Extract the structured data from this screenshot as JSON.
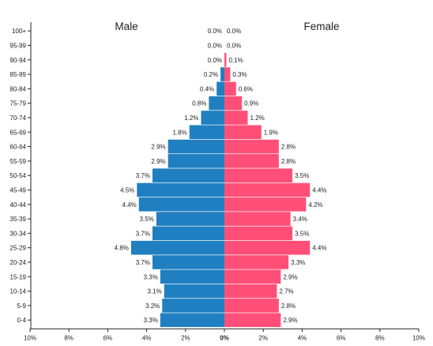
{
  "chart_data": {
    "type": "bar",
    "orientation": "horizontal",
    "layout": "population-pyramid",
    "categories": [
      "100+",
      "95-99",
      "90-94",
      "85-89",
      "80-84",
      "75-79",
      "70-74",
      "65-69",
      "60-64",
      "55-59",
      "50-54",
      "45-49",
      "40-44",
      "35-39",
      "30-34",
      "25-29",
      "20-24",
      "15-19",
      "10-14",
      "5-9",
      "0-4"
    ],
    "series": [
      {
        "name": "Male",
        "side": "left",
        "color": "#1f7fc0",
        "values": [
          0.0,
          0.0,
          0.0,
          0.2,
          0.4,
          0.8,
          1.2,
          1.8,
          2.9,
          2.9,
          3.7,
          4.5,
          4.4,
          3.5,
          3.7,
          4.8,
          3.7,
          3.3,
          3.1,
          3.2,
          3.3
        ],
        "labels": [
          "0.0%",
          "0.0%",
          "0.0%",
          "0.2%",
          "0.4%",
          "0.8%",
          "1.2%",
          "1.8%",
          "2.9%",
          "2.9%",
          "3.7%",
          "4.5%",
          "4.4%",
          "3.5%",
          "3.7%",
          "4.8%",
          "3.7%",
          "3.3%",
          "3.1%",
          "3.2%",
          "3.3%"
        ]
      },
      {
        "name": "Female",
        "side": "right",
        "color": "#ff4f78",
        "values": [
          0.0,
          0.0,
          0.1,
          0.3,
          0.6,
          0.9,
          1.2,
          1.9,
          2.8,
          2.8,
          3.5,
          4.4,
          4.2,
          3.4,
          3.5,
          4.4,
          3.3,
          2.9,
          2.7,
          2.8,
          2.9
        ],
        "labels": [
          "0.0%",
          "0.0%",
          "0.1%",
          "0.3%",
          "0.6%",
          "0.9%",
          "1.2%",
          "1.9%",
          "2.8%",
          "2.8%",
          "3.5%",
          "4.4%",
          "4.2%",
          "3.4%",
          "3.5%",
          "4.4%",
          "3.3%",
          "2.9%",
          "2.7%",
          "2.8%",
          "2.9%"
        ]
      }
    ],
    "x_ticks": [
      "10%",
      "8%",
      "6%",
      "4%",
      "2%",
      "0%",
      "2%",
      "4%",
      "6%",
      "8%",
      "10%"
    ],
    "xlim": [
      -10,
      10
    ],
    "title": "",
    "xlabel": "",
    "ylabel": "",
    "grid": false,
    "legend": "none"
  }
}
